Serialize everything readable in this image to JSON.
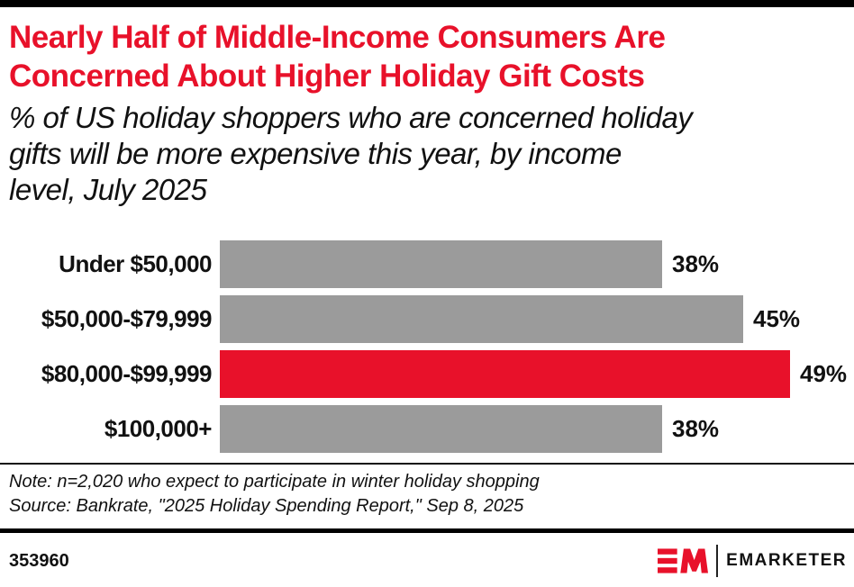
{
  "header": {
    "title": "Nearly Half of Middle-Income Consumers Are\nConcerned About Higher Holiday Gift Costs",
    "subtitle": "% of US holiday shoppers who are concerned holiday\ngifts will be more expensive this year, by income\nlevel, July 2025"
  },
  "chart_data": {
    "type": "bar",
    "orientation": "horizontal",
    "title": "Nearly Half of Middle-Income Consumers Are Concerned About Higher Holiday Gift Costs",
    "subtitle": "% of US holiday shoppers who are concerned holiday gifts will be more expensive this year, by income level, July 2025",
    "categories": [
      "Under $50,000",
      "$50,000-$79,999",
      "$80,000-$99,999",
      "$100,000+"
    ],
    "values": [
      38,
      45,
      49,
      38
    ],
    "value_labels": [
      "38%",
      "45%",
      "49%",
      "38%"
    ],
    "unit": "%",
    "xlim": [
      0,
      49
    ],
    "grid": false,
    "axes_shown": false,
    "bar_colors": [
      "#9B9B9B",
      "#9B9B9B",
      "#E8112A",
      "#9B9B9B"
    ],
    "highlight_category": "$80,000-$99,999"
  },
  "footnote": {
    "note": "Note: n=2,020 who expect to participate in winter holiday shopping",
    "source": "Source: Bankrate, \"2025 Holiday Spending Report,\" Sep 8, 2025"
  },
  "footer": {
    "chart_id": "353960",
    "brand_monogram": "EM",
    "brand_wordmark": "EMARKETER"
  },
  "colors": {
    "accent_red": "#E8112A",
    "bar_gray": "#9B9B9B",
    "text_black": "#111111",
    "rule_black": "#000000"
  }
}
